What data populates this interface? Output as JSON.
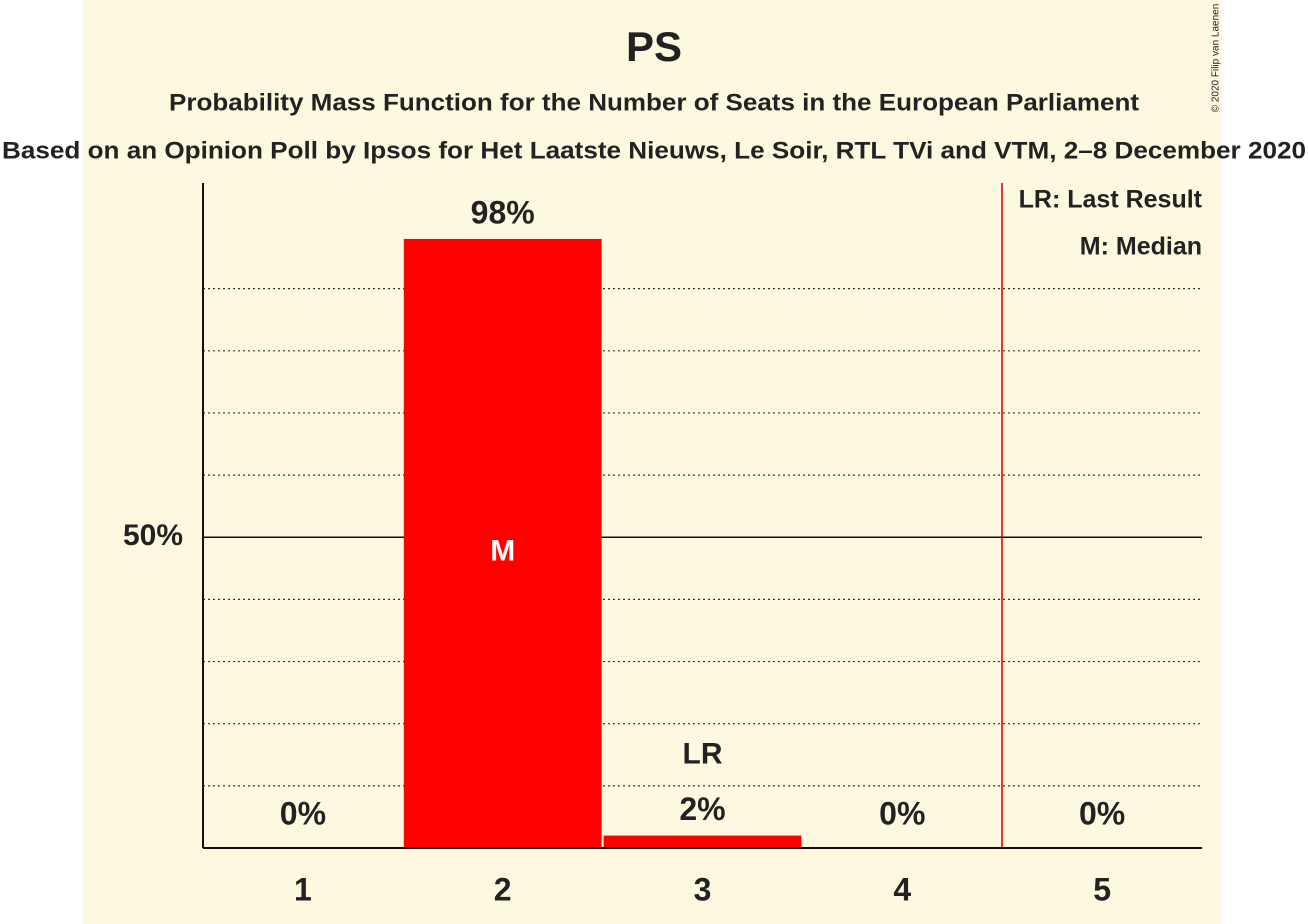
{
  "chart_data": {
    "type": "bar",
    "title": "PS",
    "subtitle": "Probability Mass Function for the Number of Seats in the European Parliament",
    "source": "Based on an Opinion Poll by Ipsos for Het Laatste Nieuws, Le Soir, RTL TVi and VTM, 2–8 December 2020",
    "copyright": "© 2020 Filip van Laenen",
    "categories": [
      "1",
      "2",
      "3",
      "4",
      "5"
    ],
    "values": [
      0,
      98,
      2,
      0,
      0
    ],
    "value_labels": [
      "0%",
      "98%",
      "2%",
      "0%",
      "0%"
    ],
    "color": "#ff0000",
    "ylim": [
      0,
      107
    ],
    "yticks": [
      {
        "value": 50,
        "label": "50%"
      }
    ],
    "minor_yticks": [
      10,
      20,
      30,
      40,
      60,
      70,
      80,
      90
    ],
    "markers": [
      {
        "label": "M",
        "category": "2",
        "position": "inside"
      },
      {
        "label": "LR",
        "category": "3",
        "position": "above"
      }
    ],
    "legend": [
      "LR: Last Result",
      "M: Median"
    ],
    "legend_position": "top-right"
  }
}
